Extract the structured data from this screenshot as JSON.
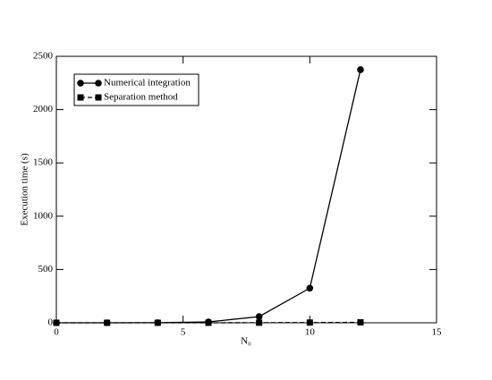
{
  "chart_data": {
    "type": "line",
    "xlabel": "N₀",
    "ylabel": "Execution time (s)",
    "x": [
      0,
      2,
      4,
      6,
      8,
      10,
      12
    ],
    "series": [
      {
        "name": "Numerical integration",
        "color": "#000000",
        "marker": "circle",
        "linestyle": "solid",
        "values": [
          0,
          0,
          1,
          8,
          58,
          325,
          2375
        ]
      },
      {
        "name": "Separation method",
        "color": "#000000",
        "marker": "square",
        "linestyle": "dashed",
        "values": [
          0,
          0,
          0,
          0,
          1,
          2,
          4
        ]
      }
    ],
    "xlim": [
      0,
      15
    ],
    "xticks": [
      0,
      5,
      10,
      15
    ],
    "ylim": [
      0,
      2500
    ],
    "yticks": [
      0,
      500,
      1000,
      1500,
      2000,
      2500
    ],
    "legend": "upper left"
  }
}
